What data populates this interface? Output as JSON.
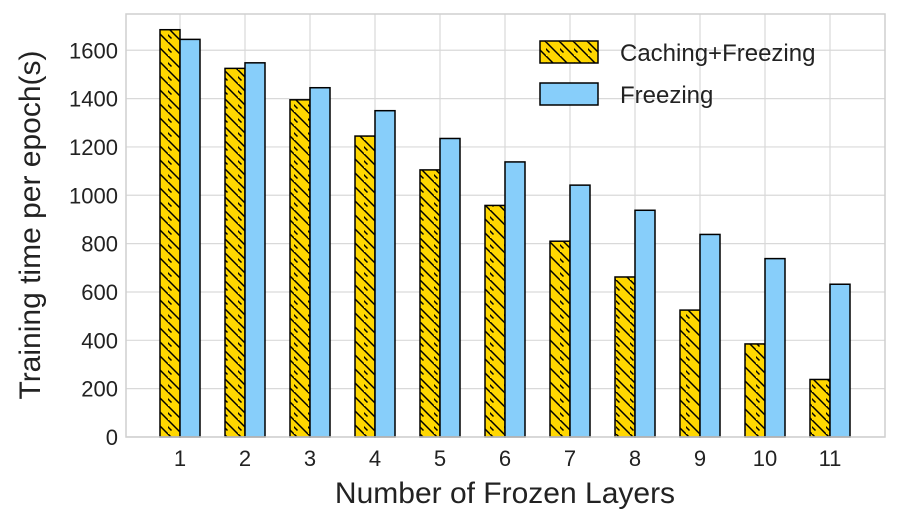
{
  "chart_data": {
    "type": "bar",
    "title": "",
    "xlabel": "Number of Frozen Layers",
    "ylabel": "Training time per epoch(s)",
    "categories": [
      "1",
      "2",
      "3",
      "4",
      "5",
      "6",
      "7",
      "8",
      "9",
      "10",
      "11"
    ],
    "series": [
      {
        "name": "Caching+Freezing",
        "color": "#FFD700",
        "pattern": "hatch-backslash",
        "values": [
          1685,
          1525,
          1395,
          1245,
          1105,
          958,
          810,
          662,
          525,
          385,
          238
        ]
      },
      {
        "name": "Freezing",
        "color": "#87CEFA",
        "pattern": "none",
        "values": [
          1645,
          1548,
          1445,
          1350,
          1235,
          1138,
          1042,
          938,
          838,
          738,
          632
        ]
      }
    ],
    "ylim": [
      0,
      1750
    ],
    "yticks": [
      0,
      200,
      400,
      600,
      800,
      1000,
      1200,
      1400,
      1600
    ],
    "grid": true,
    "legend_position": "top-right"
  }
}
